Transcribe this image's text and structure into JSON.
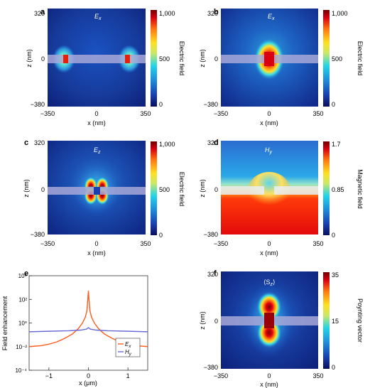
{
  "colors": {
    "field_map": [
      "#080e5c",
      "#1a3fb0",
      "#1e90dc",
      "#22d4e8",
      "#c8e86a",
      "#fde025",
      "#ff7a10",
      "#d80010",
      "#6e0000"
    ],
    "film": "#a8a8d8",
    "line_ex": "#ff5a1a",
    "line_hy": "#6a6ad8"
  },
  "panels": {
    "a": {
      "letter": "a",
      "label": "E",
      "label_sub": "x",
      "x_ticks": [
        "−350",
        "0",
        "350"
      ],
      "z_ticks": [
        "320",
        "0",
        "−380"
      ],
      "xlabel": "x (nm)",
      "zlabel": "z (nm)",
      "cbar_ticks": [
        "1,000",
        "500",
        "0"
      ],
      "cbar_label": "Electric field"
    },
    "b": {
      "letter": "b",
      "label": "E",
      "label_sub": "x",
      "x_ticks": [
        "−350",
        "0",
        "350"
      ],
      "z_ticks": [
        "320",
        "0",
        "−380"
      ],
      "xlabel": "x (nm)",
      "zlabel": "z (nm)",
      "cbar_ticks": [
        "1,000",
        "500",
        "0"
      ],
      "cbar_label": "Electric field"
    },
    "c": {
      "letter": "c",
      "label": "E",
      "label_sub": "z",
      "x_ticks": [
        "−350",
        "0",
        "350"
      ],
      "z_ticks": [
        "320",
        "0",
        "−380"
      ],
      "xlabel": "x (nm)",
      "zlabel": "z (nm)",
      "cbar_ticks": [
        "1,000",
        "500",
        "0"
      ],
      "cbar_label": "Electric field"
    },
    "d": {
      "letter": "d",
      "label": "H",
      "label_sub": "y",
      "x_ticks": [
        "−350",
        "0",
        "350"
      ],
      "z_ticks": [
        "320",
        "0",
        "−380"
      ],
      "xlabel": "x (nm)",
      "zlabel": "z (nm)",
      "cbar_ticks": [
        "1.7",
        "0.85",
        "0"
      ],
      "cbar_label": "Magnetic field"
    },
    "f": {
      "letter": "f",
      "label": "⟨S",
      "label_sub": "z",
      "label_end": "⟩",
      "x_ticks": [
        "−350",
        "0",
        "350"
      ],
      "z_ticks": [
        "320",
        "0",
        "−380"
      ],
      "xlabel": "x (nm)",
      "zlabel": "z (nm)",
      "cbar_ticks": [
        "35",
        "15",
        "0"
      ],
      "cbar_label": "Poynting vector"
    }
  },
  "chart_data": {
    "type": "line",
    "letter": "e",
    "xlabel": "x (μm)",
    "ylabel": "Field enhancement",
    "xlim": [
      -1.5,
      1.5
    ],
    "ylim": [
      0.0001,
      10000
    ],
    "yscale": "log",
    "x_ticks": [
      "−1",
      "0",
      "1"
    ],
    "y_ticks": [
      "10⁴",
      "10²",
      "10⁰",
      "10⁻²",
      "10⁻⁴"
    ],
    "grid": false,
    "legend": "bottom-right",
    "series": [
      {
        "name": "Ex",
        "name_main": "E",
        "name_sub": "x",
        "x": [
          -1.5,
          -1.2,
          -1.0,
          -0.8,
          -0.6,
          -0.4,
          -0.25,
          -0.15,
          -0.08,
          -0.04,
          -0.02,
          0.0,
          0.02,
          0.04,
          0.08,
          0.15,
          0.25,
          0.4,
          0.6,
          0.8,
          1.0,
          1.2,
          1.5
        ],
        "y": [
          0.01,
          0.012,
          0.016,
          0.025,
          0.05,
          0.12,
          0.35,
          1.0,
          3.0,
          10,
          60,
          500,
          60,
          10,
          3.0,
          1.0,
          0.35,
          0.12,
          0.05,
          0.025,
          0.016,
          0.012,
          0.01
        ]
      },
      {
        "name": "Hy",
        "name_main": "H",
        "name_sub": "y",
        "x": [
          -1.5,
          -1.0,
          -0.5,
          -0.2,
          -0.05,
          0.0,
          0.05,
          0.2,
          0.5,
          1.0,
          1.5
        ],
        "y": [
          0.18,
          0.2,
          0.22,
          0.25,
          0.3,
          0.4,
          0.3,
          0.25,
          0.22,
          0.2,
          0.18
        ]
      }
    ]
  }
}
